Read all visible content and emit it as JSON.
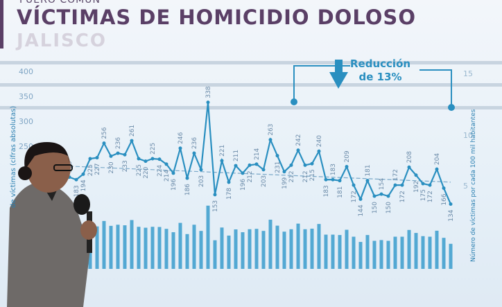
{
  "header": {
    "superscript": "FUERO COMÚN",
    "title": "VÍCTIMAS DE HOMICIDIO DOLOSO",
    "subtitle": "JALISCO"
  },
  "annotation": {
    "line1": "Reducción",
    "line2": "de 13%",
    "icon": "arrow-down-icon"
  },
  "colors": {
    "line": "#2a8fc0",
    "bars": "#3a9ccc",
    "title": "#5a3f66"
  },
  "chart_data": {
    "type": "line",
    "ylabel": "de víctimas (cifras absolutas)",
    "y2label": "Número de víctimas por cada 100 mil habitantes",
    "ylim": [
      100,
      400
    ],
    "yticks": [
      400,
      350,
      300,
      250
    ],
    "y2ticks": [
      15,
      10,
      5
    ],
    "trendline": true,
    "values": [
      188,
      183,
      194,
      225,
      227,
      256,
      230,
      236,
      233,
      261,
      225,
      220,
      225,
      224,
      214,
      196,
      246,
      186,
      236,
      203,
      338,
      153,
      221,
      178,
      211,
      196,
      212,
      214,
      203,
      263,
      231,
      199,
      212,
      242,
      212,
      215,
      240,
      183,
      183,
      181,
      209,
      172,
      144,
      181,
      150,
      154,
      150,
      172,
      172,
      208,
      192,
      175,
      172,
      204,
      166,
      134
    ]
  }
}
